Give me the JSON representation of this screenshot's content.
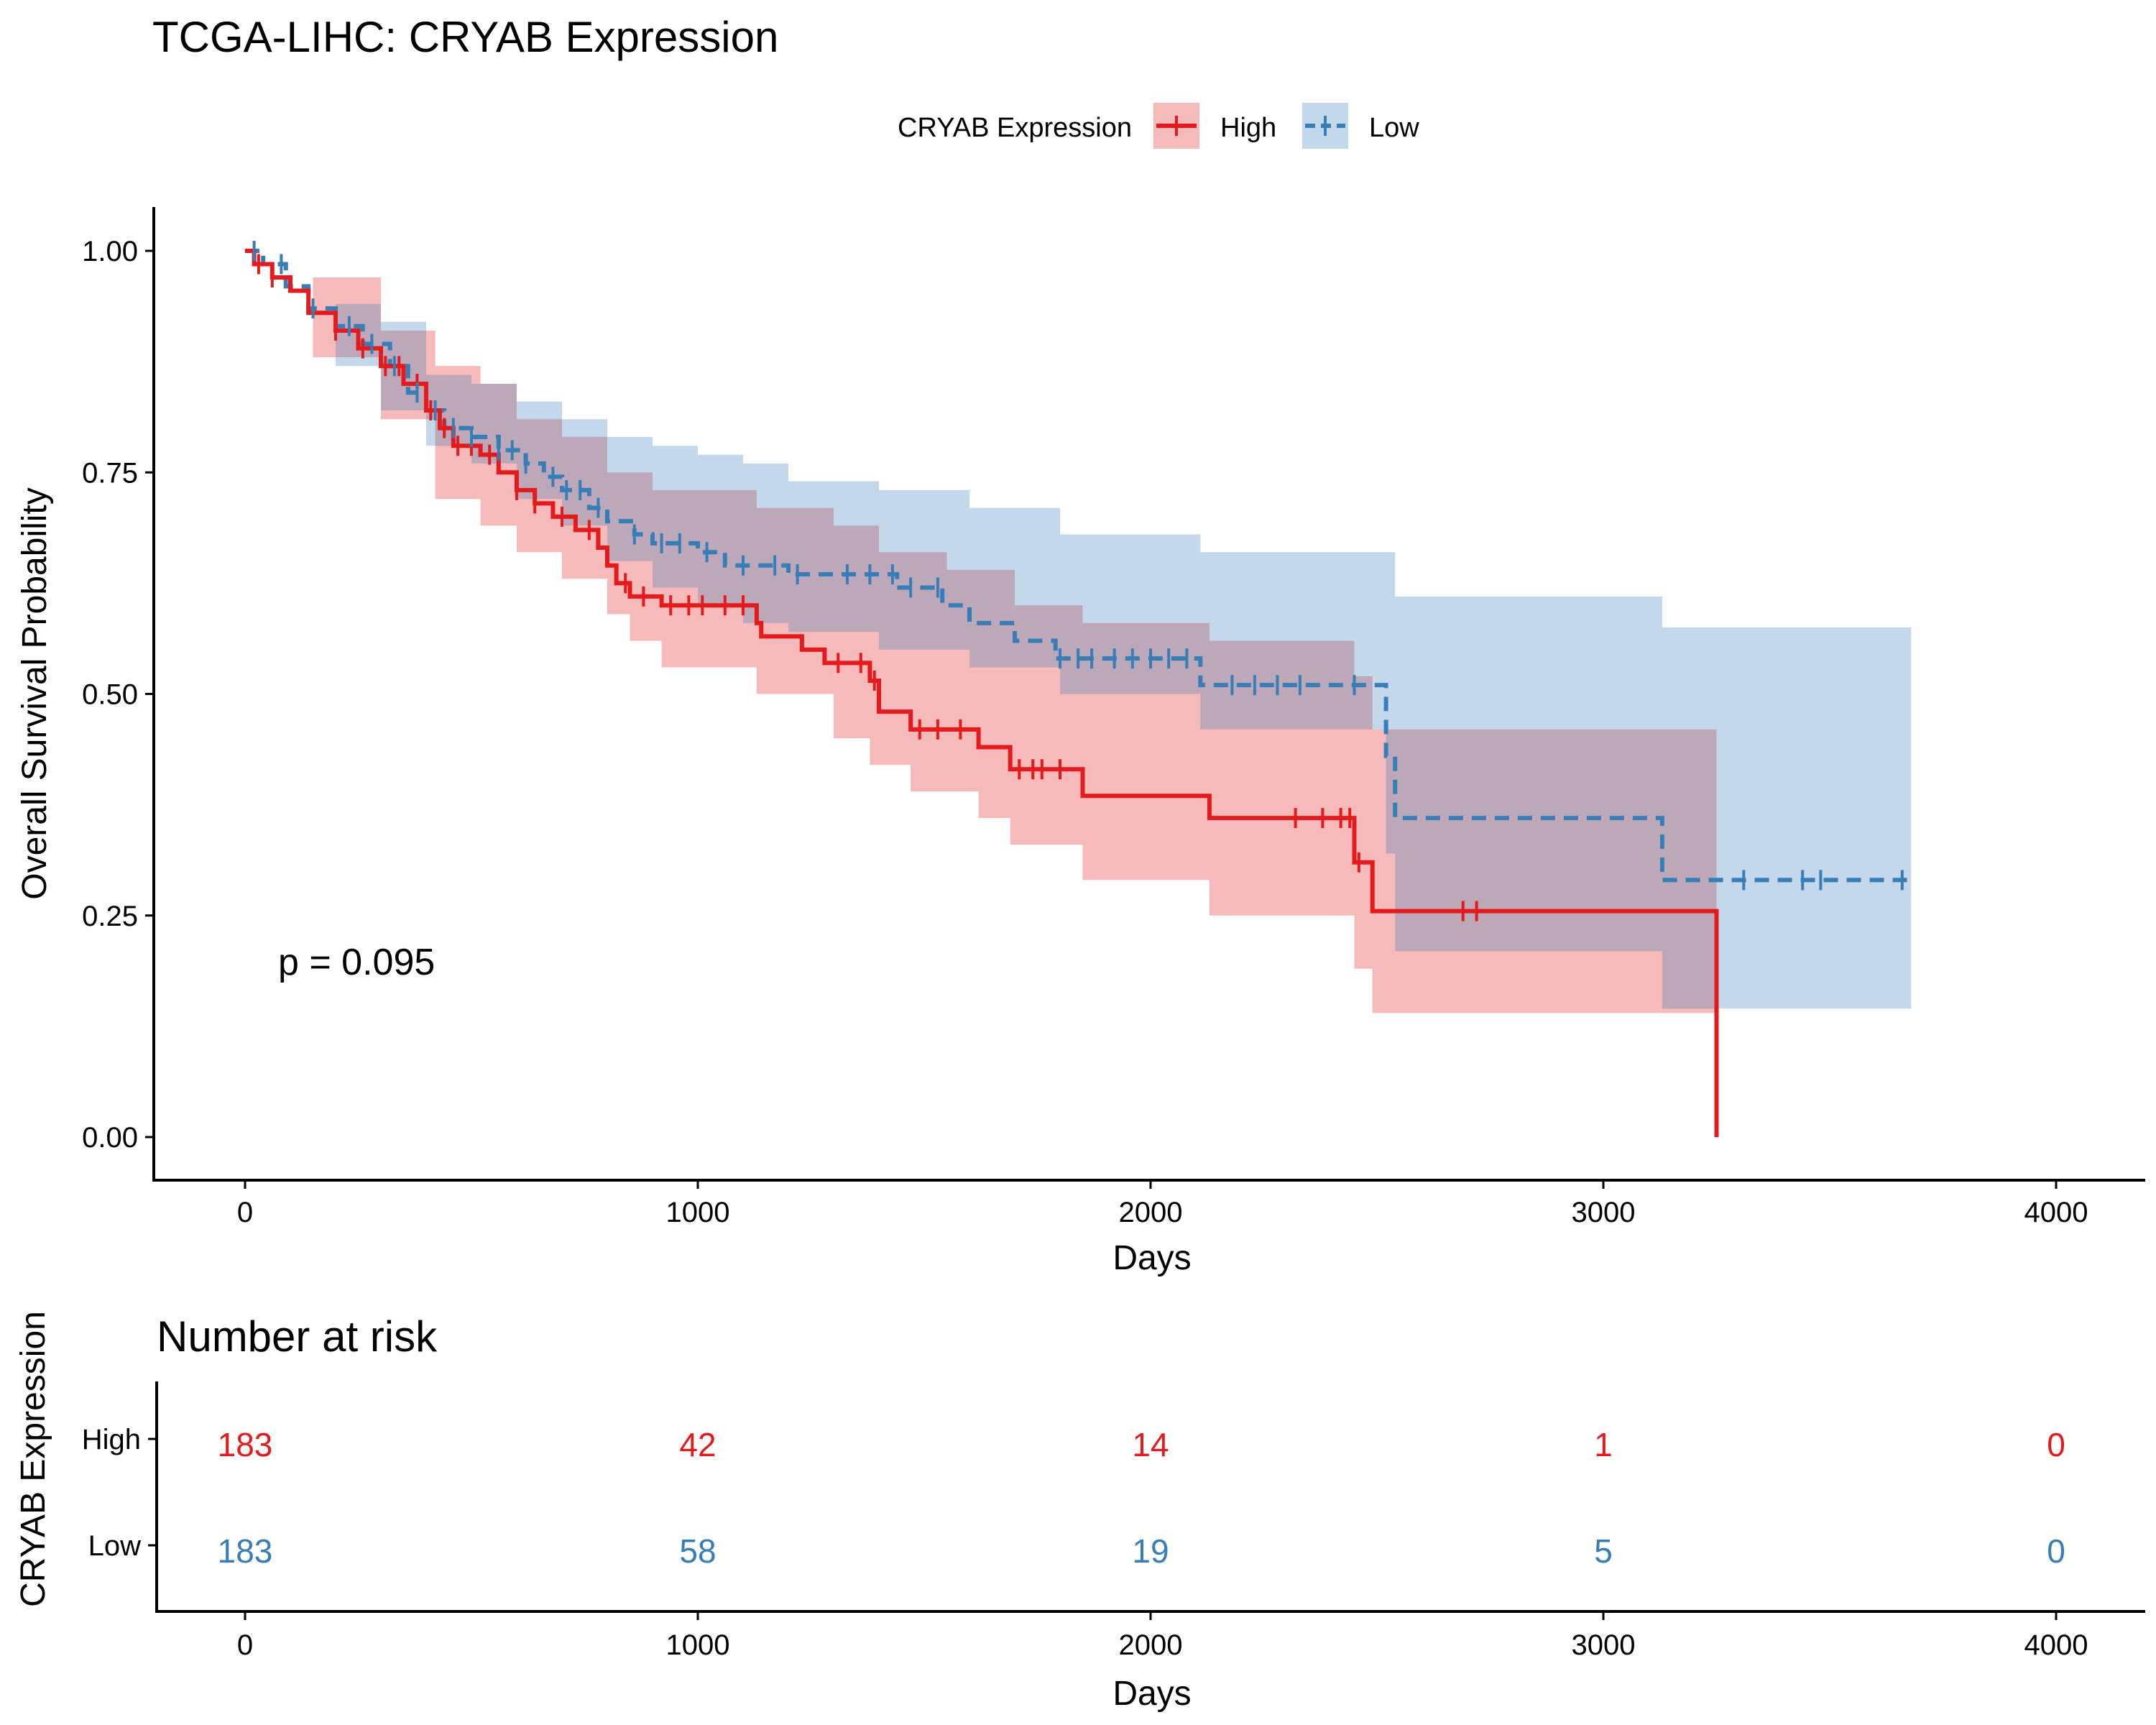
{
  "chart_data": {
    "type": "line",
    "subtype": "kaplan-meier",
    "title": "TCGA-LIHC: CRYAB Expression",
    "xlabel": "Days",
    "ylabel": "Overall Survival Probability",
    "xlim": [
      -200,
      4200
    ],
    "ylim": [
      -0.05,
      1.05
    ],
    "xticks": [
      0,
      1000,
      2000,
      3000,
      4000
    ],
    "yticks": [
      "0.00",
      "0.25",
      "0.50",
      "0.75",
      "1.00"
    ],
    "yticks_values": [
      0,
      0.25,
      0.5,
      0.75,
      1.0
    ],
    "grid": false,
    "legend": {
      "title": "CRYAB Expression",
      "position": "top",
      "entries": [
        "High",
        "Low"
      ]
    },
    "annotation": "p = 0.095",
    "series": [
      {
        "name": "High",
        "color": "#E41A1C",
        "linestyle": "solid",
        "steps": [
          [
            0,
            1.0
          ],
          [
            20,
            0.985
          ],
          [
            60,
            0.97
          ],
          [
            100,
            0.955
          ],
          [
            140,
            0.93
          ],
          [
            200,
            0.91
          ],
          [
            250,
            0.89
          ],
          [
            300,
            0.87
          ],
          [
            350,
            0.85
          ],
          [
            400,
            0.82
          ],
          [
            430,
            0.8
          ],
          [
            460,
            0.78
          ],
          [
            520,
            0.77
          ],
          [
            560,
            0.75
          ],
          [
            600,
            0.73
          ],
          [
            640,
            0.715
          ],
          [
            680,
            0.7
          ],
          [
            730,
            0.685
          ],
          [
            780,
            0.665
          ],
          [
            800,
            0.645
          ],
          [
            820,
            0.625
          ],
          [
            850,
            0.61
          ],
          [
            920,
            0.6
          ],
          [
            1130,
            0.58
          ],
          [
            1140,
            0.565
          ],
          [
            1230,
            0.55
          ],
          [
            1280,
            0.535
          ],
          [
            1380,
            0.515
          ],
          [
            1400,
            0.48
          ],
          [
            1470,
            0.46
          ],
          [
            1620,
            0.44
          ],
          [
            1690,
            0.415
          ],
          [
            1850,
            0.385
          ],
          [
            2130,
            0.36
          ],
          [
            2450,
            0.31
          ],
          [
            2490,
            0.255
          ],
          [
            3250,
            0.0
          ]
        ],
        "end_x": 3250,
        "upper": [
          [
            0,
            1.0
          ],
          [
            150,
            0.97
          ],
          [
            300,
            0.91
          ],
          [
            420,
            0.87
          ],
          [
            520,
            0.85
          ],
          [
            600,
            0.81
          ],
          [
            700,
            0.79
          ],
          [
            800,
            0.75
          ],
          [
            900,
            0.73
          ],
          [
            1130,
            0.71
          ],
          [
            1300,
            0.69
          ],
          [
            1400,
            0.66
          ],
          [
            1550,
            0.64
          ],
          [
            1700,
            0.6
          ],
          [
            1850,
            0.58
          ],
          [
            2130,
            0.56
          ],
          [
            2450,
            0.52
          ],
          [
            2490,
            0.46
          ],
          [
            3250,
            0.46
          ]
        ],
        "lower": [
          [
            0,
            1.0
          ],
          [
            150,
            0.88
          ],
          [
            300,
            0.81
          ],
          [
            420,
            0.72
          ],
          [
            520,
            0.69
          ],
          [
            600,
            0.66
          ],
          [
            700,
            0.63
          ],
          [
            800,
            0.59
          ],
          [
            850,
            0.56
          ],
          [
            920,
            0.53
          ],
          [
            1130,
            0.5
          ],
          [
            1300,
            0.45
          ],
          [
            1380,
            0.42
          ],
          [
            1470,
            0.39
          ],
          [
            1620,
            0.36
          ],
          [
            1690,
            0.33
          ],
          [
            1850,
            0.29
          ],
          [
            2130,
            0.25
          ],
          [
            2450,
            0.19
          ],
          [
            2490,
            0.14
          ],
          [
            3130,
            0.14
          ]
        ],
        "censor_x": [
          30,
          60,
          200,
          260,
          310,
          340,
          380,
          410,
          440,
          470,
          500,
          540,
          600,
          640,
          700,
          760,
          840,
          880,
          940,
          980,
          1010,
          1060,
          1100,
          1310,
          1360,
          1390,
          1490,
          1530,
          1580,
          1710,
          1740,
          1760,
          1800,
          2320,
          2380,
          2420,
          2440,
          2460,
          2690,
          2720
        ]
      },
      {
        "name": "Low",
        "color": "#377EB8",
        "linestyle": "dashed",
        "steps": [
          [
            0,
            1.0
          ],
          [
            40,
            0.985
          ],
          [
            90,
            0.96
          ],
          [
            140,
            0.935
          ],
          [
            200,
            0.915
          ],
          [
            260,
            0.895
          ],
          [
            320,
            0.87
          ],
          [
            360,
            0.84
          ],
          [
            400,
            0.82
          ],
          [
            440,
            0.8
          ],
          [
            500,
            0.79
          ],
          [
            560,
            0.775
          ],
          [
            620,
            0.76
          ],
          [
            660,
            0.745
          ],
          [
            700,
            0.73
          ],
          [
            760,
            0.71
          ],
          [
            800,
            0.695
          ],
          [
            860,
            0.68
          ],
          [
            900,
            0.67
          ],
          [
            1000,
            0.66
          ],
          [
            1060,
            0.645
          ],
          [
            1200,
            0.635
          ],
          [
            1440,
            0.62
          ],
          [
            1540,
            0.6
          ],
          [
            1600,
            0.58
          ],
          [
            1700,
            0.56
          ],
          [
            1790,
            0.54
          ],
          [
            2110,
            0.51
          ],
          [
            2520,
            0.43
          ],
          [
            2540,
            0.36
          ],
          [
            3130,
            0.29
          ]
        ],
        "end_x": 3680,
        "upper": [
          [
            0,
            1.0
          ],
          [
            200,
            0.94
          ],
          [
            300,
            0.92
          ],
          [
            400,
            0.86
          ],
          [
            500,
            0.85
          ],
          [
            600,
            0.83
          ],
          [
            700,
            0.81
          ],
          [
            800,
            0.79
          ],
          [
            900,
            0.78
          ],
          [
            1000,
            0.77
          ],
          [
            1100,
            0.76
          ],
          [
            1200,
            0.74
          ],
          [
            1400,
            0.73
          ],
          [
            1600,
            0.71
          ],
          [
            1800,
            0.68
          ],
          [
            2110,
            0.66
          ],
          [
            2540,
            0.61
          ],
          [
            3130,
            0.575
          ],
          [
            3680,
            0.575
          ]
        ],
        "lower": [
          [
            0,
            1.0
          ],
          [
            200,
            0.87
          ],
          [
            300,
            0.82
          ],
          [
            400,
            0.78
          ],
          [
            500,
            0.76
          ],
          [
            600,
            0.72
          ],
          [
            700,
            0.69
          ],
          [
            800,
            0.65
          ],
          [
            900,
            0.62
          ],
          [
            1000,
            0.6
          ],
          [
            1100,
            0.58
          ],
          [
            1200,
            0.57
          ],
          [
            1400,
            0.55
          ],
          [
            1600,
            0.53
          ],
          [
            1800,
            0.5
          ],
          [
            2110,
            0.46
          ],
          [
            2520,
            0.32
          ],
          [
            2540,
            0.21
          ],
          [
            3130,
            0.145
          ],
          [
            3680,
            0.145
          ]
        ],
        "censor_x": [
          20,
          80,
          150,
          230,
          280,
          330,
          380,
          420,
          460,
          500,
          560,
          590,
          620,
          680,
          710,
          740,
          780,
          860,
          920,
          960,
          1020,
          1100,
          1170,
          1220,
          1330,
          1380,
          1430,
          1470,
          1530,
          1800,
          1840,
          1870,
          1920,
          1960,
          2000,
          2040,
          2080,
          2180,
          2230,
          2280,
          2330,
          2450,
          3310,
          3440,
          3480,
          3660
        ]
      }
    ],
    "risk_table": {
      "title": "Number at risk",
      "ylabel": "CRYAB Expression",
      "xlabel": "Days",
      "xticks": [
        0,
        1000,
        2000,
        3000,
        4000
      ],
      "times": [
        0,
        1000,
        2000,
        3000,
        4000
      ],
      "rows": [
        {
          "name": "High",
          "color": "#E41A1C",
          "counts": [
            "183",
            "42",
            "14",
            "1",
            "0"
          ]
        },
        {
          "name": "Low",
          "color": "#377EB8",
          "counts": [
            "183",
            "58",
            "19",
            "5",
            "0"
          ]
        }
      ]
    }
  }
}
